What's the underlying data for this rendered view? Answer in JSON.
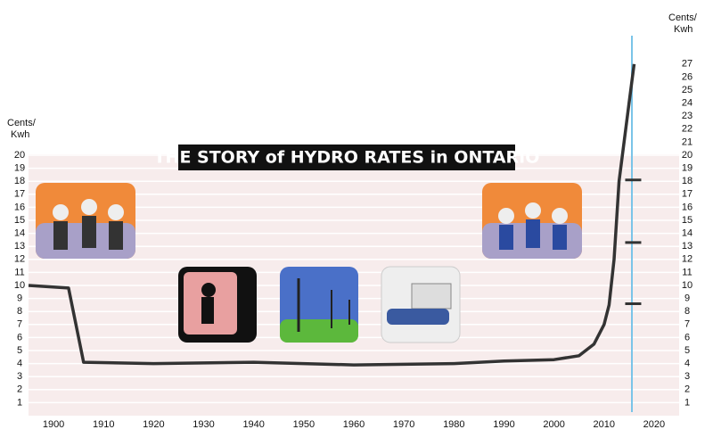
{
  "chart_data": {
    "type": "line",
    "title": "THE STORY of HYDRO RATES in ONTARIO",
    "y_label_left": [
      "Cents/",
      "Kwh"
    ],
    "y_label_right": [
      "Cents/",
      "Kwh"
    ],
    "x": [
      1895,
      1903,
      1906,
      1920,
      1940,
      1960,
      1980,
      1990,
      2000,
      2005,
      2008,
      2010,
      2011,
      2012,
      2013,
      2014,
      2015,
      2016
    ],
    "series": [
      {
        "color": "#333333",
        "values": [
          10,
          9.8,
          4.1,
          4.0,
          4.1,
          3.9,
          4.0,
          4.2,
          4.3,
          4.6,
          5.5,
          7,
          8.5,
          12,
          18,
          21,
          24,
          27
        ]
      }
    ],
    "rate_marks": {
      "x": [
        2016,
        2016,
        2016
      ],
      "values": [
        8.6,
        13.3,
        18.1
      ]
    },
    "xlim": [
      1895,
      2025
    ],
    "xticks": [
      1900,
      1910,
      1920,
      1930,
      1940,
      1950,
      1960,
      1970,
      1980,
      1990,
      2000,
      2010,
      2020
    ],
    "ylim": [
      0,
      29
    ],
    "yticks": [
      1,
      2,
      3,
      4,
      5,
      6,
      7,
      8,
      9,
      10,
      11,
      12,
      13,
      14,
      15,
      16,
      17,
      18,
      19,
      20
    ],
    "y2lim": [
      0,
      29
    ],
    "y2ticks": [
      1,
      2,
      3,
      4,
      5,
      6,
      7,
      8,
      9,
      10,
      11,
      12,
      13,
      14,
      15,
      16,
      17,
      18,
      19,
      20,
      21,
      22,
      23,
      24,
      25,
      26,
      27
    ],
    "grid": true
  }
}
